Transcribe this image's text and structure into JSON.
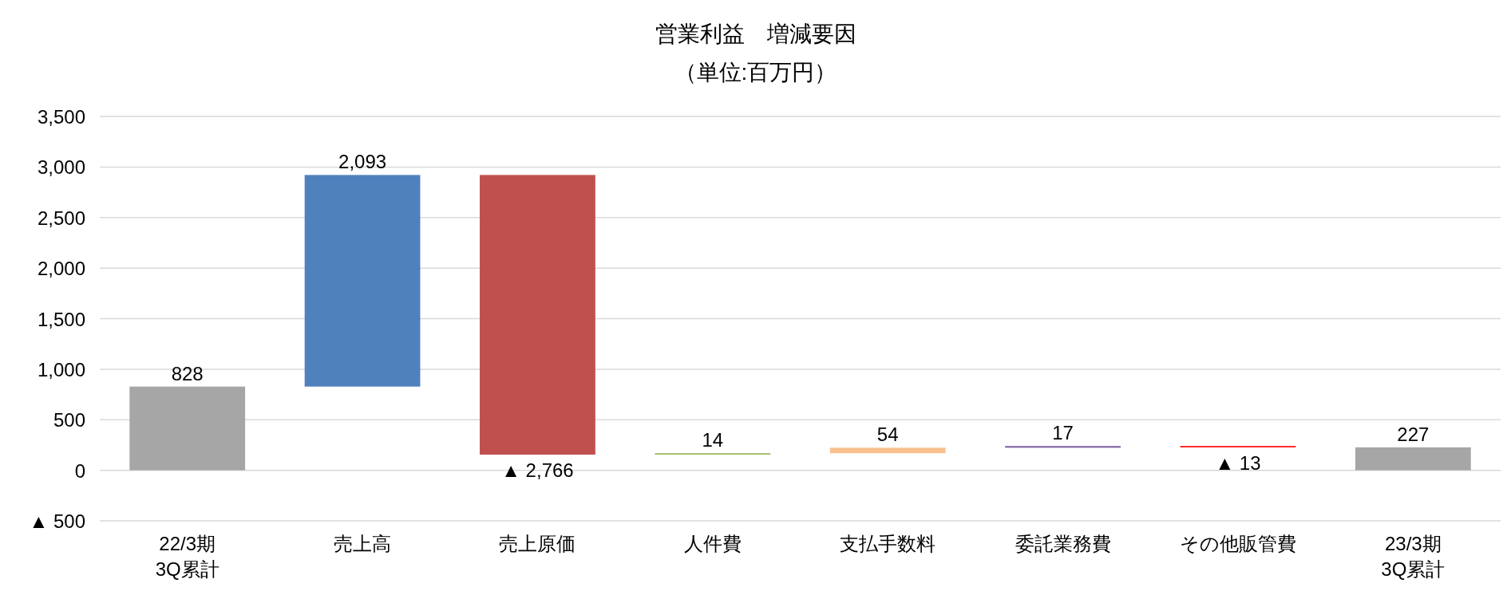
{
  "chart_data": {
    "type": "bar",
    "title": "営業利益　増減要因",
    "subtitle": "（単位:百万円）",
    "categories": [
      "22/3期\n3Q累計",
      "売上高",
      "売上原価",
      "人件費",
      "支払手数料",
      "委託業務費",
      "その他販管費",
      "23/3期\n3Q累計"
    ],
    "values": [
      828,
      2093,
      -2766,
      14,
      54,
      17,
      -13,
      227
    ],
    "base": [
      0,
      828,
      2921,
      155,
      169,
      223,
      240,
      0
    ],
    "colors": [
      "#a6a6a6",
      "#4f81bd",
      "#c0504d",
      "#9bbb59",
      "#fac090",
      "#8064a2",
      "#ff0000",
      "#a6a6a6"
    ],
    "value_labels": [
      "828",
      "2,093",
      "▲ 2,766",
      "14",
      "54",
      "17",
      "▲ 13",
      "227"
    ],
    "ylim": [
      -500,
      3500
    ],
    "yticks": [
      {
        "value": -500,
        "label": "▲ 500"
      },
      0,
      {
        "value": 500,
        "label": "500"
      },
      {
        "value": 1000,
        "label": "1,000"
      },
      {
        "value": 1500,
        "label": "1,500"
      },
      {
        "value": 2000,
        "label": "2,000"
      },
      {
        "value": 2500,
        "label": "2,500"
      },
      {
        "value": 3000,
        "label": "3,000"
      },
      {
        "value": 3500,
        "label": "3,500"
      }
    ],
    "grid": "y"
  }
}
